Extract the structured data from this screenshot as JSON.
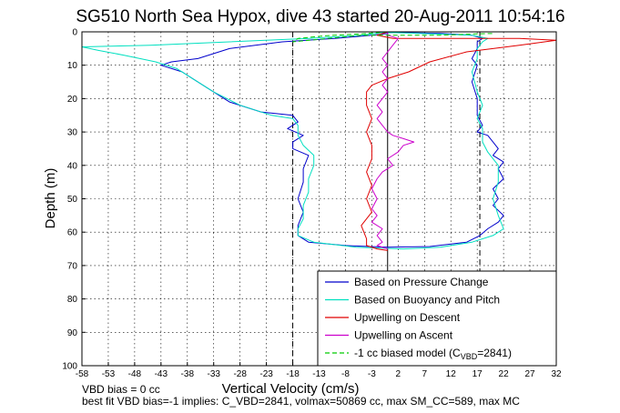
{
  "chart_data": {
    "type": "line",
    "title": "SG510 North Sea Hypox, dive 43 started 20-Aug-2011 10:54:16",
    "xlabel": "Vertical Velocity (cm/s)",
    "ylabel": "Depth (m)",
    "xlim": [
      -58,
      32
    ],
    "ylim": [
      100,
      0
    ],
    "y_reversed": true,
    "grid": true,
    "legend_position": "bottom-right",
    "xticks": [
      "-58",
      "-53",
      "-48",
      "-43",
      "-38",
      "-33",
      "-28",
      "-23",
      "-18",
      "-13",
      "-8",
      "-3",
      "2",
      "7",
      "12",
      "17",
      "22",
      "27",
      "32"
    ],
    "yticks": [
      "0",
      "10",
      "20",
      "30",
      "40",
      "50",
      "60",
      "70",
      "80",
      "90",
      "100"
    ],
    "vertical_lines": [
      {
        "x": -18,
        "style": "dashed",
        "color": "#000000"
      },
      {
        "x": 17.5,
        "style": "dashed",
        "color": "#000000"
      },
      {
        "x": 0,
        "style": "solid",
        "color": "#000000"
      }
    ],
    "series": [
      {
        "name": "Based on Pressure Change",
        "color": "#0000cc",
        "points": [
          [
            0,
            0.5
          ],
          [
            -3,
            1
          ],
          [
            -10,
            2
          ],
          [
            -20,
            3
          ],
          [
            -30,
            5
          ],
          [
            -36,
            8
          ],
          [
            -41,
            9
          ],
          [
            -43,
            10
          ],
          [
            -39,
            12
          ],
          [
            -37,
            14
          ],
          [
            -34,
            17
          ],
          [
            -30,
            21
          ],
          [
            -24,
            24
          ],
          [
            -18,
            25
          ],
          [
            -17,
            27
          ],
          [
            -19,
            29
          ],
          [
            -16,
            31
          ],
          [
            -18,
            33
          ],
          [
            -18,
            35
          ],
          [
            -15,
            37
          ],
          [
            -16,
            41
          ],
          [
            -16,
            45
          ],
          [
            -17,
            50
          ],
          [
            -16,
            54
          ],
          [
            -17,
            58
          ],
          [
            -17,
            61
          ],
          [
            -15,
            63
          ],
          [
            -8,
            64
          ],
          [
            0,
            64.5
          ],
          [
            8,
            64.3
          ],
          [
            15,
            63
          ],
          [
            17.5,
            61
          ],
          [
            19,
            59
          ],
          [
            21,
            57
          ],
          [
            22,
            55
          ],
          [
            20,
            52
          ],
          [
            21,
            50
          ],
          [
            20,
            47
          ],
          [
            22,
            44
          ],
          [
            21,
            41
          ],
          [
            22,
            39
          ],
          [
            20,
            37
          ],
          [
            21,
            35
          ],
          [
            20,
            33
          ],
          [
            19,
            31
          ],
          [
            17,
            30
          ],
          [
            18,
            28
          ],
          [
            17,
            25
          ],
          [
            17,
            20
          ],
          [
            16,
            15
          ],
          [
            17,
            10
          ],
          [
            16,
            8
          ],
          [
            17,
            5
          ],
          [
            17,
            3
          ],
          [
            18,
            2
          ],
          [
            16,
            1
          ],
          [
            10,
            0.5
          ],
          [
            5,
            0.3
          ],
          [
            0,
            0.2
          ]
        ]
      },
      {
        "name": "Based on Buoyancy and Pitch",
        "color": "#00e0c0",
        "points": [
          [
            0,
            0
          ],
          [
            -5,
            1
          ],
          [
            -15,
            2
          ],
          [
            -30,
            3
          ],
          [
            -45,
            4
          ],
          [
            -58,
            4.5
          ],
          [
            -55,
            5.5
          ],
          [
            -50,
            7
          ],
          [
            -44,
            9
          ],
          [
            -40,
            11
          ],
          [
            -37,
            14
          ],
          [
            -33,
            18
          ],
          [
            -28,
            22
          ],
          [
            -22,
            25
          ],
          [
            -18,
            26
          ],
          [
            -17,
            28
          ],
          [
            -17,
            31
          ],
          [
            -16,
            34
          ],
          [
            -14,
            37
          ],
          [
            -14,
            40
          ],
          [
            -15,
            44
          ],
          [
            -15,
            48
          ],
          [
            -16,
            52
          ],
          [
            -16,
            56
          ],
          [
            -17,
            59
          ],
          [
            -17,
            61
          ],
          [
            -14,
            63
          ],
          [
            -6,
            64.5
          ],
          [
            3,
            65
          ],
          [
            10,
            64.5
          ],
          [
            16,
            63
          ],
          [
            20,
            61
          ],
          [
            22,
            59
          ],
          [
            21,
            55
          ],
          [
            20,
            50
          ],
          [
            21,
            45
          ],
          [
            21,
            40
          ],
          [
            19,
            36
          ],
          [
            18,
            33
          ],
          [
            18,
            29
          ],
          [
            17,
            26
          ],
          [
            18,
            22
          ],
          [
            17,
            18
          ],
          [
            16,
            12
          ],
          [
            17,
            8
          ],
          [
            17,
            5
          ],
          [
            18,
            3
          ],
          [
            19,
            2
          ],
          [
            16,
            1
          ],
          [
            6,
            0.5
          ],
          [
            0,
            0.2
          ]
        ]
      },
      {
        "name": "Upwelling on Descent",
        "color": "#e00000",
        "points": [
          [
            0,
            0
          ],
          [
            -2,
            1
          ],
          [
            1,
            2
          ],
          [
            10,
            2
          ],
          [
            25,
            2
          ],
          [
            32,
            2.5
          ],
          [
            25,
            4
          ],
          [
            15,
            6
          ],
          [
            8,
            9
          ],
          [
            4,
            12
          ],
          [
            0,
            14
          ],
          [
            -3,
            16
          ],
          [
            -4,
            18
          ],
          [
            -4,
            22
          ],
          [
            -3,
            26
          ],
          [
            -4,
            30
          ],
          [
            -3,
            34
          ],
          [
            -3,
            38
          ],
          [
            -4,
            42
          ],
          [
            -3,
            46
          ],
          [
            -4,
            50
          ],
          [
            -3,
            54
          ],
          [
            -5,
            58
          ],
          [
            -4,
            62
          ],
          [
            -4,
            64
          ],
          [
            -2,
            65
          ],
          [
            0,
            65.5
          ]
        ]
      },
      {
        "name": "Upwelling on Ascent",
        "color": "#cc00cc",
        "points": [
          [
            0,
            65
          ],
          [
            -2,
            64
          ],
          [
            -1,
            63
          ],
          [
            -2,
            61
          ],
          [
            -1,
            59
          ],
          [
            -3,
            57
          ],
          [
            -2,
            55
          ],
          [
            -3,
            53
          ],
          [
            -2,
            50
          ],
          [
            -3,
            47
          ],
          [
            -2,
            44
          ],
          [
            -1,
            42
          ],
          [
            1,
            40
          ],
          [
            0,
            38
          ],
          [
            2,
            36
          ],
          [
            3,
            34
          ],
          [
            5,
            33
          ],
          [
            3,
            32
          ],
          [
            1,
            31
          ],
          [
            0,
            30
          ],
          [
            -1,
            28
          ],
          [
            -2,
            26
          ],
          [
            -1,
            24
          ],
          [
            -2,
            22
          ],
          [
            -1,
            20
          ],
          [
            0,
            18
          ],
          [
            -1,
            16
          ],
          [
            0,
            14
          ],
          [
            -1,
            12
          ],
          [
            0,
            10
          ],
          [
            -1,
            8
          ],
          [
            0,
            6
          ],
          [
            1,
            4
          ],
          [
            2,
            2
          ],
          [
            0,
            1
          ],
          [
            0,
            0
          ]
        ]
      },
      {
        "name": "-1 cc biased model (C_VBD=2841)",
        "color": "#00cc00",
        "style": "dashed",
        "points": [
          [
            0,
            0
          ],
          [
            -5,
            0.6
          ],
          [
            -12,
            1.2
          ],
          [
            -17,
            2
          ],
          [
            -18,
            3
          ],
          [
            -5,
            1
          ],
          [
            10,
            1
          ],
          [
            17,
            0.6
          ],
          [
            20,
            0.5
          ]
        ]
      }
    ],
    "legend": [
      {
        "label": "Based on Pressure Change",
        "color": "#0000cc",
        "style": "solid"
      },
      {
        "label": "Based on Buoyancy and Pitch",
        "color": "#00e0c0",
        "style": "solid"
      },
      {
        "label": "Upwelling on Descent",
        "color": "#e00000",
        "style": "solid"
      },
      {
        "label": "Upwelling on Ascent",
        "color": "#cc00cc",
        "style": "solid"
      },
      {
        "label": "-1 cc biased model (C",
        "sub": "VBD",
        "tail": "=2841)",
        "color": "#00cc00",
        "style": "dashed"
      }
    ]
  },
  "footer": {
    "line1": "VBD bias = 0 cc",
    "line2": "best fit VBD bias=-1 implies: C_VBD=2841, volmax=50869 cc, max SM_CC=589, max MC"
  }
}
